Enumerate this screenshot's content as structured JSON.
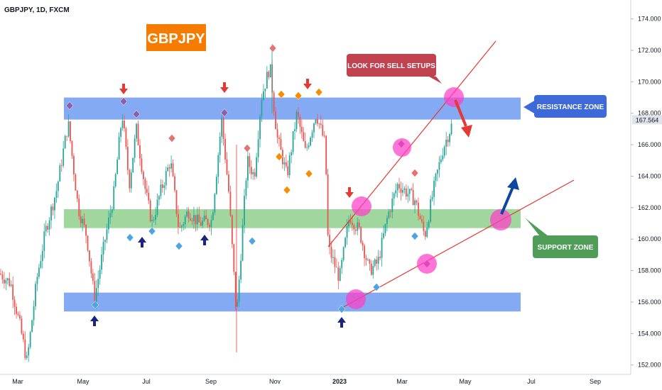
{
  "chart_data": {
    "type": "candlestick",
    "header": "GBPJPY, 1D, FXCM",
    "title_badge": "GBPJPY",
    "price_axis": {
      "range": [
        151.4,
        175.2
      ],
      "ticks": [
        "152.000",
        "154.000",
        "156.000",
        "158.000",
        "160.000",
        "162.000",
        "164.000",
        "166.000",
        "168.000",
        "170.000",
        "172.000",
        "174.000"
      ],
      "current_price": "167.564"
    },
    "time_axis": {
      "ticks": [
        "Mar",
        "May",
        "Jul",
        "Sep",
        "Nov",
        "2023",
        "Mar",
        "May",
        "Jul",
        "Sep"
      ]
    },
    "zones": [
      {
        "name": "resistance",
        "from": 167.6,
        "to": 169.0,
        "label": "RESISTANCE ZONE"
      },
      {
        "name": "support",
        "from": 160.7,
        "to": 161.9,
        "label": "SUPPORT ZONE"
      },
      {
        "name": "lower",
        "from": 155.4,
        "to": 156.6,
        "label": ""
      }
    ],
    "annotations": {
      "sell_note": "LOOK FOR SELL SETUPS"
    },
    "colors": {
      "up": "#26a69a",
      "down": "#ef5350",
      "resistance_zone": "#5b8def",
      "support_zone": "#7fc97f",
      "badge": "#f57c00",
      "resistance_label": "#3d6ad8",
      "support_label": "#4f9d57",
      "sell_label": "#c0424f",
      "trendline": "#e53935",
      "circle": "#ff3fc8"
    }
  }
}
